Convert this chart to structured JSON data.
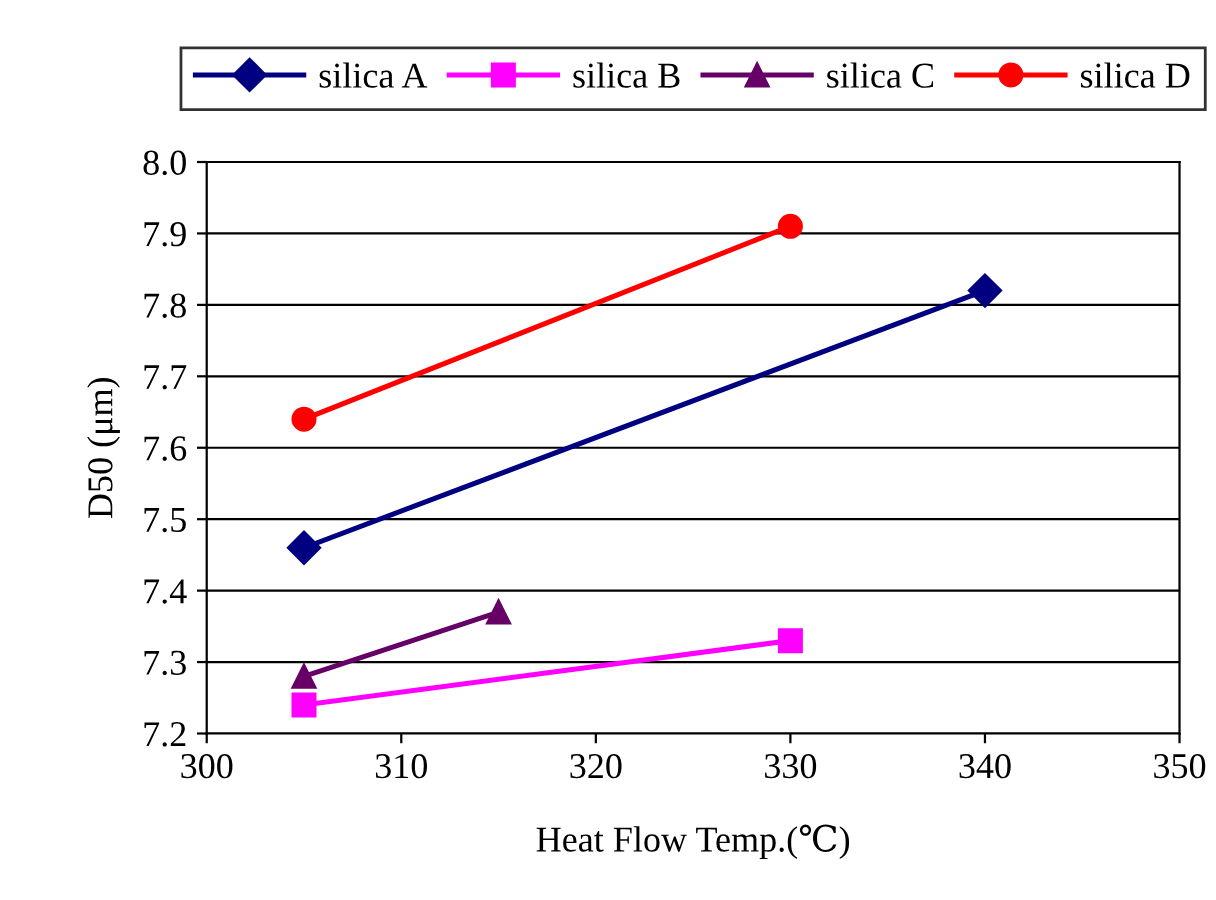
{
  "chart_data": {
    "type": "line",
    "xlabel": "Heat Flow Temp.(℃)",
    "ylabel": "D50 (μm)",
    "series": [
      {
        "name": "silica A",
        "color": "#000080",
        "marker": "diamond",
        "x": [
          305,
          340
        ],
        "values": [
          7.46,
          7.82
        ]
      },
      {
        "name": "silica B",
        "color": "#ff00ff",
        "marker": "square",
        "x": [
          305,
          330
        ],
        "values": [
          7.24,
          7.33
        ]
      },
      {
        "name": "silica C",
        "color": "#660066",
        "marker": "triangle",
        "x": [
          305,
          315
        ],
        "values": [
          7.28,
          7.37
        ]
      },
      {
        "name": "silica D",
        "color": "#ff0000",
        "marker": "circle",
        "x": [
          305,
          330
        ],
        "values": [
          7.64,
          7.91
        ]
      }
    ],
    "xlim": [
      300,
      350
    ],
    "xticks": [
      300,
      310,
      320,
      330,
      340,
      350
    ],
    "ylim": [
      7.2,
      8.0
    ],
    "yticks": [
      {
        "value": 7.2,
        "label": "7.2"
      },
      {
        "value": 7.3,
        "label": "7.3"
      },
      {
        "value": 7.4,
        "label": "7.4"
      },
      {
        "value": 7.5,
        "label": "7.5"
      },
      {
        "value": 7.6,
        "label": "7.6"
      },
      {
        "value": 7.7,
        "label": "7.7"
      },
      {
        "value": 7.8,
        "label": "7.8"
      },
      {
        "value": 7.9,
        "label": "7.9"
      },
      {
        "value": 8.0,
        "label": "8.0"
      }
    ],
    "grid": "y",
    "legend": "top",
    "line_style": "solid"
  }
}
